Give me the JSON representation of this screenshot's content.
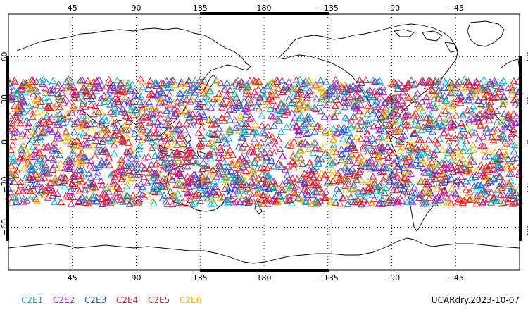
{
  "map": {
    "projection": "cylindrical-equidistant",
    "center_longitude": 180,
    "lon_range": [
      0,
      360
    ],
    "lat_range": [
      -90,
      90
    ],
    "grid_style": "dotted",
    "lon_ticks": [
      {
        "lon": 45,
        "label": "45"
      },
      {
        "lon": 90,
        "label": "90"
      },
      {
        "lon": 135,
        "label": "135"
      },
      {
        "lon": 180,
        "label": "180"
      },
      {
        "lon": 225,
        "label": "−135"
      },
      {
        "lon": 270,
        "label": "−90"
      },
      {
        "lon": 315,
        "label": "−45"
      }
    ],
    "lat_ticks": [
      {
        "lat": 60,
        "label": "60"
      },
      {
        "lat": 30,
        "label": "30"
      },
      {
        "lat": 0,
        "label": "0"
      },
      {
        "lat": -30,
        "label": "−30"
      },
      {
        "lat": -60,
        "label": "−60"
      }
    ],
    "coastline_color": "#000000"
  },
  "chart_data": {
    "type": "scatter",
    "marker": "triangle-outline",
    "x_units": "longitude (deg, 0-360)",
    "y_units": "latitude (deg)",
    "coverage_lat_range": [
      -45,
      45
    ],
    "series": [
      {
        "name": "C2E1",
        "color": "#00b4c8",
        "approx_count": 520
      },
      {
        "name": "C2E2",
        "color": "#a020c0",
        "approx_count": 520
      },
      {
        "name": "C2E3",
        "color": "#1e5adc",
        "approx_count": 520
      },
      {
        "name": "C2E4",
        "color": "#dc143c",
        "approx_count": 520
      },
      {
        "name": "C2E5",
        "color": "#e61e1e",
        "approx_count": 520
      },
      {
        "name": "C2E6",
        "color": "#f0b400",
        "approx_count": 520
      }
    ]
  },
  "legend": [
    {
      "label": "C2E1",
      "color": "#00b4c8"
    },
    {
      "label": "C2E2",
      "color": "#a020c0"
    },
    {
      "label": "C2E3",
      "color": "#1e5adc"
    },
    {
      "label": "C2E4",
      "color": "#dc143c"
    },
    {
      "label": "C2E5",
      "color": "#e61e1e"
    },
    {
      "label": "C2E6",
      "color": "#f0b400"
    }
  ],
  "stamp": "UCARdry.2023-10-07"
}
